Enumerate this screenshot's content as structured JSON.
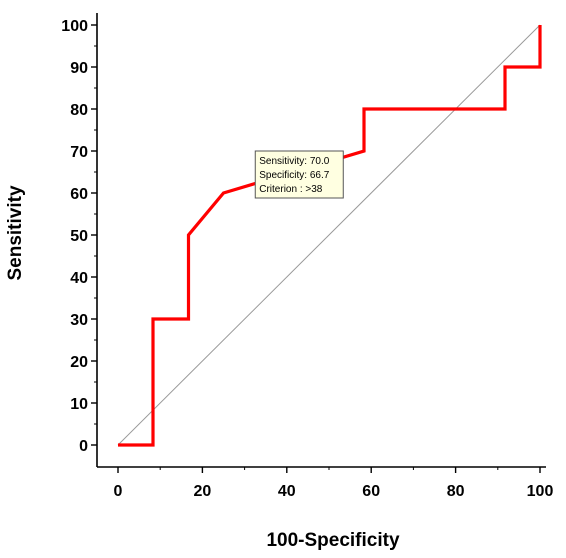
{
  "chart_data": {
    "type": "line",
    "title": "",
    "xlabel": "100-Specificity",
    "ylabel": "Sensitivity",
    "xlim": [
      0,
      100
    ],
    "ylim": [
      0,
      100
    ],
    "x_ticks": [
      0,
      20,
      40,
      60,
      80,
      100
    ],
    "y_ticks": [
      0,
      10,
      20,
      30,
      40,
      50,
      60,
      70,
      80,
      90,
      100
    ],
    "grid": false,
    "legend": "none",
    "series": [
      {
        "x": [
          0,
          8.3,
          8.3,
          16.7,
          16.7,
          25,
          58.3,
          58.3,
          91.7,
          91.7,
          100,
          100
        ],
        "y": [
          0,
          0,
          30,
          30,
          50,
          60,
          70,
          80,
          80,
          90,
          90,
          100
        ],
        "color": "#ff0000"
      },
      {
        "x": [
          0,
          100
        ],
        "y": [
          0,
          100
        ],
        "color": "#999999"
      }
    ],
    "annotation": {
      "lines": [
        "Sensitivity: 70.0",
        "Specificity: 66.7",
        "Criterion : >38"
      ],
      "anchor_x": 33,
      "anchor_y": 60,
      "background": "#ffffe1"
    }
  }
}
